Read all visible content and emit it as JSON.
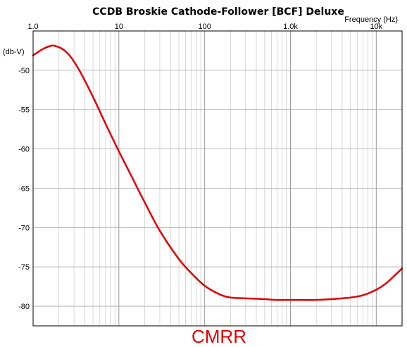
{
  "chart_data": {
    "type": "line",
    "title": "CCDB Broskie Cathode-Follower [BCF] Deluxe",
    "xlabel": "Frequency   (Hz)",
    "ylabel": "(db-V)",
    "x_scale": "log",
    "xlim": [
      1,
      20000
    ],
    "ylim": [
      -82.5,
      -45
    ],
    "x_tick_labels": [
      {
        "value": 1,
        "label": "1.0"
      },
      {
        "value": 10,
        "label": "10"
      },
      {
        "value": 100,
        "label": "100"
      },
      {
        "value": 1000,
        "label": "1.0k"
      },
      {
        "value": 10000,
        "label": "10k"
      }
    ],
    "y_tick_labels": [
      {
        "value": -50,
        "label": "-50"
      },
      {
        "value": -55,
        "label": "-55"
      },
      {
        "value": -60,
        "label": "-60"
      },
      {
        "value": -65,
        "label": "-65"
      },
      {
        "value": -70,
        "label": "-70"
      },
      {
        "value": -75,
        "label": "-75"
      },
      {
        "value": -80,
        "label": "-80"
      }
    ],
    "grid": true,
    "annotation": "CMRR",
    "line_color": "#e00000",
    "series": [
      {
        "x": [
          1,
          1.3,
          1.6,
          1.8,
          2.2,
          2.7,
          3.5,
          5,
          7,
          10,
          15,
          20,
          30,
          50,
          70,
          100,
          150,
          200,
          300,
          500,
          700,
          1000,
          2000,
          3000,
          5000,
          7000,
          10000,
          13000,
          16000,
          20000
        ],
        "y": [
          -48.1,
          -47.3,
          -46.9,
          -46.9,
          -47.3,
          -48.2,
          -50.1,
          -53.4,
          -56.8,
          -60.3,
          -64.1,
          -66.8,
          -70.4,
          -74.0,
          -75.8,
          -77.4,
          -78.5,
          -78.9,
          -79.0,
          -79.1,
          -79.2,
          -79.2,
          -79.2,
          -79.1,
          -78.9,
          -78.6,
          -77.9,
          -77.1,
          -76.2,
          -75.2
        ]
      }
    ]
  }
}
